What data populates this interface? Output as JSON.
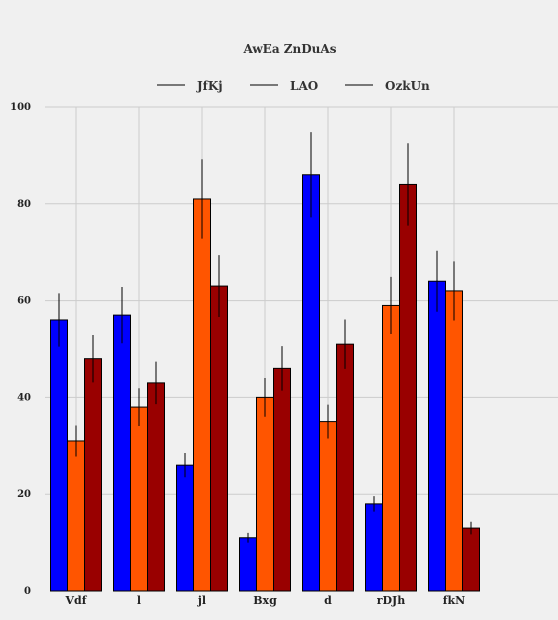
{
  "chart_data": {
    "type": "bar",
    "title": "AwEa ZnDuAs",
    "xlabel": "",
    "ylabel": "",
    "ylim": [
      0,
      100
    ],
    "yticks": [
      0,
      20,
      40,
      60,
      80,
      100
    ],
    "grid": true,
    "legend_position": "top-center",
    "categories": [
      "Vdf",
      "l",
      "jl",
      "Bxg",
      "d",
      "rDJh",
      "fkN"
    ],
    "series": [
      {
        "name": "JfKj",
        "color": "#0000ff",
        "values": [
          56,
          57,
          26,
          11,
          86,
          18,
          64
        ],
        "errors": [
          5.5,
          5.8,
          2.5,
          1.0,
          8.8,
          1.6,
          6.3
        ]
      },
      {
        "name": "LAO",
        "color": "#ff5500",
        "values": [
          31,
          38,
          81,
          40,
          35,
          59,
          62
        ],
        "errors": [
          3.2,
          3.9,
          8.2,
          4.0,
          3.5,
          5.9,
          6.1
        ]
      },
      {
        "name": "OzkUn",
        "color": "#990000",
        "values": [
          48,
          43,
          63,
          46,
          51,
          84,
          13
        ],
        "errors": [
          4.9,
          4.4,
          6.4,
          4.6,
          5.1,
          8.5,
          1.3
        ]
      }
    ]
  }
}
